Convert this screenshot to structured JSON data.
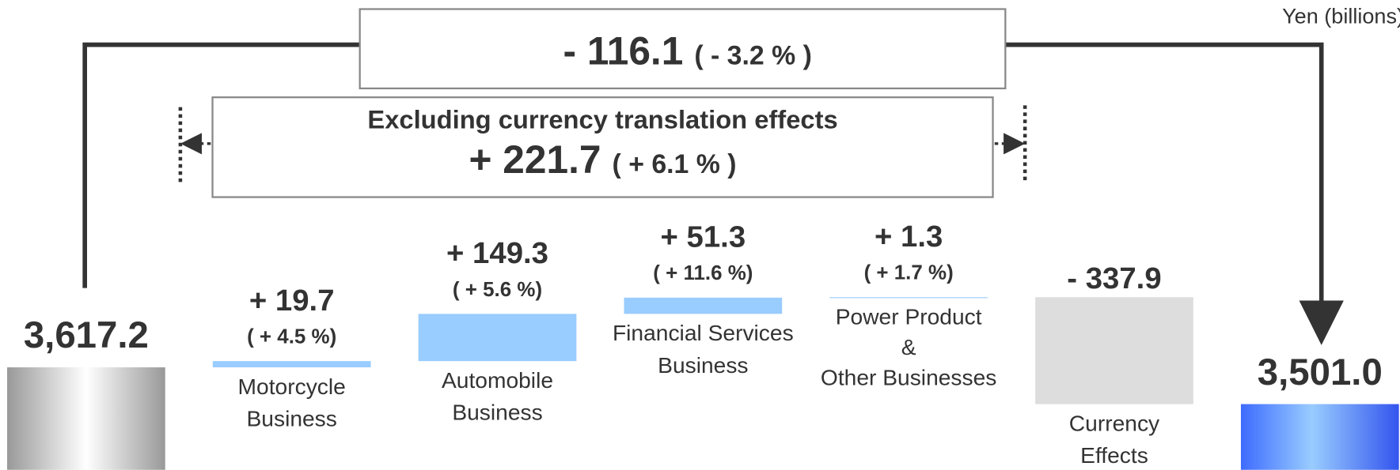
{
  "chart_data": {
    "type": "waterfall",
    "unit_label": "Yen (billions)",
    "total_change_label": "- 116.1",
    "total_change_percent_label": "( - 3.2 % )",
    "excluding_title": "Excluding currency translation effects",
    "excluding_change_label": "+ 221.7",
    "excluding_change_percent_label": "( + 6.1 % )",
    "categories": [
      null,
      [
        "Motorcycle",
        "Business"
      ],
      [
        "Automobile",
        "Business"
      ],
      [
        "Financial Services",
        "Business"
      ],
      [
        "Power Product",
        "&",
        "Other Businesses"
      ],
      [
        "Currency",
        "Effects"
      ],
      null
    ],
    "measure": [
      "total",
      "relative",
      "relative",
      "relative",
      "relative",
      "relative",
      "total"
    ],
    "values": [
      3617.2,
      19.7,
      149.3,
      51.3,
      1.3,
      -337.9,
      3501.0
    ],
    "value_labels": [
      "3,617.2",
      "+ 19.7",
      "+ 149.3",
      "+ 51.3",
      "+ 1.3",
      "- 337.9",
      "3,501.0"
    ],
    "percent_labels": [
      null,
      "( + 4.5 %)",
      "( + 5.6 %)",
      "( + 11.6 %)",
      "( + 1.7 %)",
      null,
      null
    ],
    "increase_color": "#99ccff",
    "decrease_color": "#dddddd"
  }
}
